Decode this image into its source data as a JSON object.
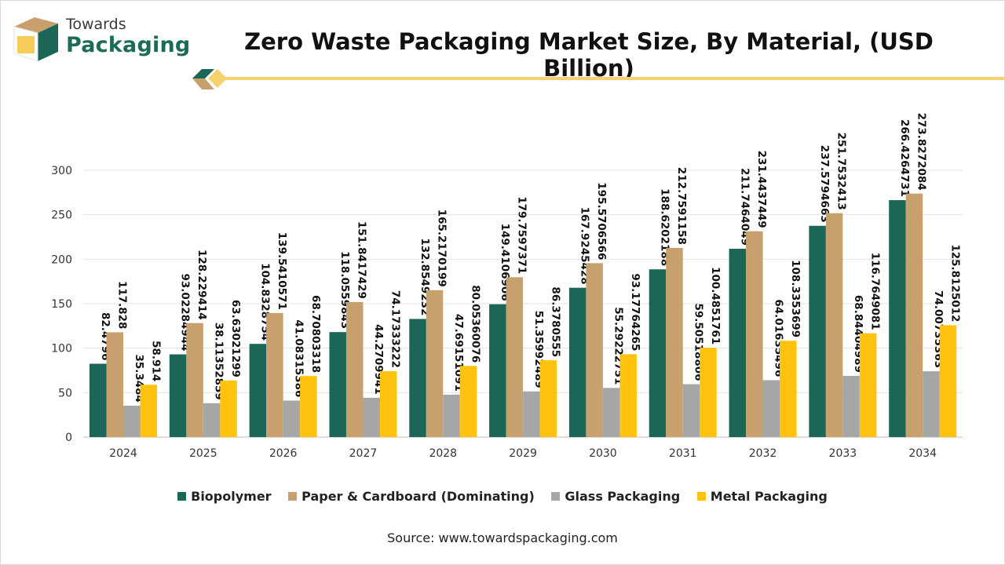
{
  "brand": {
    "line1": "Towards",
    "line2": "Packaging"
  },
  "header": {
    "title": "Zero Waste Packaging Market Size, By Material, (USD Billion)"
  },
  "source": "Source: www.towardspackaging.com",
  "colors": {
    "biopolymer": "#1b6656",
    "paper": "#c7a06e",
    "glass": "#a6a6a6",
    "metal": "#ffc30f",
    "accent_line": "#f5d26b"
  },
  "chart_data": {
    "type": "bar",
    "title": "Zero Waste Packaging Market Size, By Material, (USD Billion)",
    "xlabel": "",
    "ylabel": "",
    "ylim": [
      0,
      300
    ],
    "yticks": [
      0,
      50,
      100,
      150,
      200,
      250,
      300
    ],
    "grid": true,
    "legend_position": "bottom",
    "categories": [
      "2024",
      "2025",
      "2026",
      "2027",
      "2028",
      "2029",
      "2030",
      "2031",
      "2032",
      "2033",
      "2034"
    ],
    "series": [
      {
        "name": "Biopolymer",
        "color": "#1b6656",
        "values": [
          82.4796,
          93.02284944,
          104.8328754,
          118.0559843,
          132.8549232,
          149.4106906,
          167.9245428,
          188.6202188,
          211.7464049,
          237.5794663,
          266.4264731
        ],
        "labels": [
          "82.4796",
          "93.02284944",
          "104.8328754",
          "118.0559843",
          "132.8549232",
          "149.4106906",
          "167.9245428",
          "188.6202188",
          "211.7464049",
          "237.5794663",
          "266.4264731"
        ]
      },
      {
        "name": "Paper & Cardboard (Dominating)",
        "color": "#c7a06e",
        "values": [
          117.828,
          128.229414,
          139.5410571,
          151.8417429,
          165.2170199,
          179.7597371,
          195.5706566,
          212.7591158,
          231.4437449,
          251.7532413,
          273.8272084
        ],
        "labels": [
          "117.828",
          "128.229414",
          "139.5410571",
          "151.8417429",
          "165.2170199",
          "179.7597371",
          "195.5706566",
          "212.7591158",
          "231.4437449",
          "251.7532413",
          "273.8272084"
        ]
      },
      {
        "name": "Glass Packaging",
        "color": "#a6a6a6",
        "values": [
          35.3484,
          38.11352859,
          41.08315386,
          44.2709941,
          47.69151091,
          51.35992489,
          55.29222751,
          59.50518806,
          64.01635496,
          68.84404989,
          74.00735363
        ],
        "labels": [
          "35.3484",
          "38.11352859",
          "41.08315386",
          "44.2709941",
          "47.69151091",
          "51.35992489",
          "55.29222751",
          "59.50518806",
          "64.01635496",
          "68.84404989",
          "74.00735363"
        ]
      },
      {
        "name": "Metal Packaging",
        "color": "#ffc30f",
        "values": [
          58.914,
          63.63021299,
          68.70803318,
          74.17333222,
          80.05360076,
          86.3780555,
          93.17764265,
          100.4851761,
          108.3353699,
          116.7649081,
          125.8125012
        ],
        "labels": [
          "58.914",
          "63.63021299",
          "68.70803318",
          "74.17333222",
          "80.05360076",
          "86.3780555",
          "93.17764265",
          "100.4851761",
          "108.3353699",
          "116.7649081",
          "125.8125012"
        ]
      }
    ]
  }
}
